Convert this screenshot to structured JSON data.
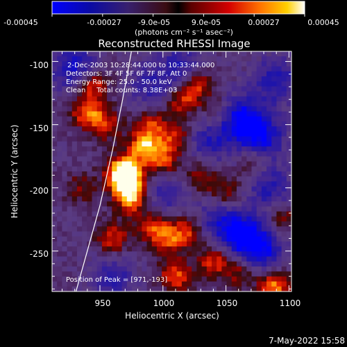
{
  "colorbar": {
    "tick_labels": [
      "-0.00045",
      "-0.00027",
      "-9.0e-05",
      "9.0e-05",
      "0.00027",
      "0.00045"
    ],
    "units_label": "(photons cm⁻² s⁻¹ asec⁻²)",
    "min": -0.00045,
    "max": 0.00045
  },
  "chart_data": {
    "type": "heatmap",
    "title": "Reconstructed RHESSI Image",
    "xlabel": "Heliocentric X (arcsec)",
    "ylabel": "Heliocentric Y (arcsec)",
    "xlim": [
      912,
      1102
    ],
    "ylim": [
      -282,
      -92
    ],
    "x_ticks": [
      950,
      1000,
      1050,
      1100
    ],
    "y_ticks": [
      -100,
      -150,
      -200,
      -250
    ],
    "annotations": [
      "2-Dec-2003 10:28:44.000 to 10:33:44.000",
      "Detectors: 3F 4F 5F 6F 7F 8F, Att 0",
      "Energy Range: 25.0 - 50.0 keV",
      "Clean     Total counts: 8.38E+03"
    ],
    "peak_label": "Position of Peak = [971,-193]",
    "peak": [
      971,
      -193
    ],
    "limb_curve": [
      [
        931,
        -282
      ],
      [
        940,
        -250
      ],
      [
        950,
        -214
      ],
      [
        960,
        -170
      ],
      [
        968,
        -130
      ],
      [
        975,
        -92
      ]
    ],
    "hot_spots": [
      {
        "x": 972,
        "y": -196,
        "v": 1.0
      },
      {
        "x": 968,
        "y": -187,
        "v": 0.85
      },
      {
        "x": 985,
        "y": -168,
        "v": 0.75
      },
      {
        "x": 976,
        "y": -210,
        "v": 0.6
      },
      {
        "x": 1000,
        "y": -178,
        "v": 0.55
      },
      {
        "x": 990,
        "y": -150,
        "v": 0.5
      },
      {
        "x": 1015,
        "y": -130,
        "v": 0.55
      },
      {
        "x": 1010,
        "y": -160,
        "v": 0.5
      },
      {
        "x": 1028,
        "y": -118,
        "v": 0.55
      },
      {
        "x": 1030,
        "y": -190,
        "v": 0.45
      },
      {
        "x": 1020,
        "y": -235,
        "v": 0.5
      },
      {
        "x": 993,
        "y": -232,
        "v": 0.55
      },
      {
        "x": 1005,
        "y": -240,
        "v": 0.45
      },
      {
        "x": 940,
        "y": -140,
        "v": 0.65
      },
      {
        "x": 945,
        "y": -118,
        "v": 0.6
      },
      {
        "x": 955,
        "y": -150,
        "v": 0.45
      },
      {
        "x": 960,
        "y": -240,
        "v": 0.55
      },
      {
        "x": 1010,
        "y": -270,
        "v": 0.6
      },
      {
        "x": 1040,
        "y": -258,
        "v": 0.55
      },
      {
        "x": 1060,
        "y": -265,
        "v": 0.45
      },
      {
        "x": 1088,
        "y": -278,
        "v": 0.75
      },
      {
        "x": 1095,
        "y": -225,
        "v": 0.4
      },
      {
        "x": 1072,
        "y": -180,
        "v": 0.35
      },
      {
        "x": 1050,
        "y": -205,
        "v": 0.45
      },
      {
        "x": 1045,
        "y": -140,
        "v": 0.35
      },
      {
        "x": 935,
        "y": -200,
        "v": 0.3
      }
    ],
    "cold_spots": [
      {
        "x": 1060,
        "y": -145,
        "v": 0.9
      },
      {
        "x": 1078,
        "y": -160,
        "v": 0.8
      },
      {
        "x": 1065,
        "y": -240,
        "v": 0.85
      },
      {
        "x": 1045,
        "y": -225,
        "v": 0.6
      },
      {
        "x": 930,
        "y": -105,
        "v": 0.7
      },
      {
        "x": 1090,
        "y": -115,
        "v": 0.6
      },
      {
        "x": 1015,
        "y": -105,
        "v": 0.55
      },
      {
        "x": 990,
        "y": -120,
        "v": 0.45
      },
      {
        "x": 1000,
        "y": -205,
        "v": 0.45
      },
      {
        "x": 1035,
        "y": -165,
        "v": 0.5
      },
      {
        "x": 960,
        "y": -270,
        "v": 0.5
      },
      {
        "x": 1085,
        "y": -200,
        "v": 0.55
      },
      {
        "x": 1080,
        "y": -250,
        "v": 0.6
      }
    ]
  },
  "footer": {
    "timestamp": "7-May-2022 15:58"
  }
}
